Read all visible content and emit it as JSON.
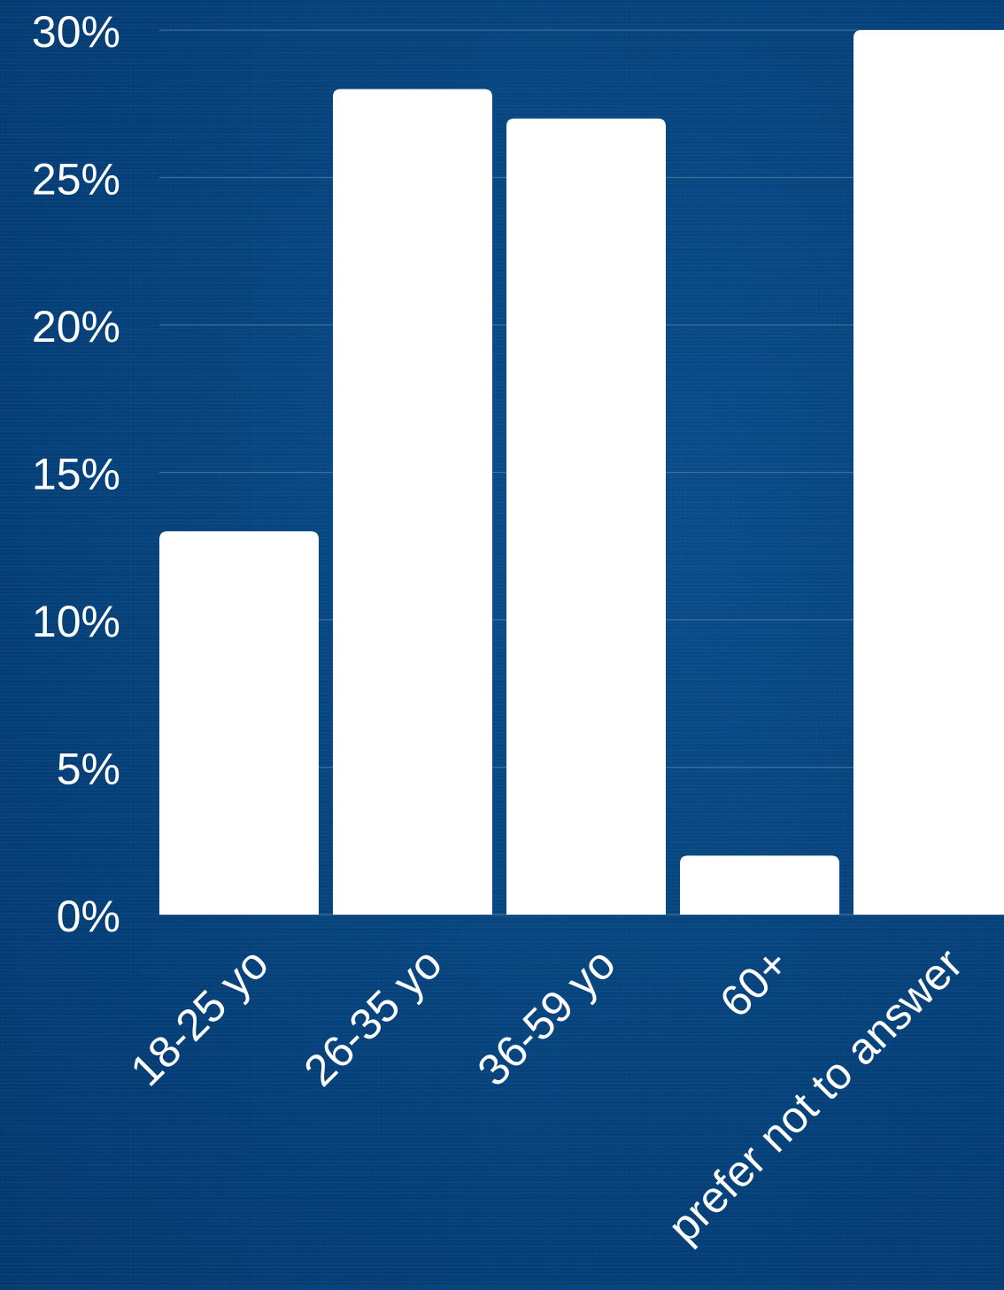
{
  "chart_data": {
    "type": "bar",
    "categories": [
      "18-25 yo",
      "26-35 yo",
      "36-59 yo",
      "60+",
      "prefer not to answer"
    ],
    "values": [
      13,
      28,
      27,
      2,
      30
    ],
    "y_ticks": [
      "0%",
      "5%",
      "10%",
      "15%",
      "20%",
      "25%",
      "30%"
    ],
    "ylim": [
      0,
      30
    ],
    "title": "",
    "xlabel": "",
    "ylabel": "",
    "grid": true,
    "legend": "none",
    "colors": {
      "background": "#064580",
      "bar": "#ffffff",
      "grid": "#3d6e9c",
      "text": "#ffffff"
    }
  }
}
